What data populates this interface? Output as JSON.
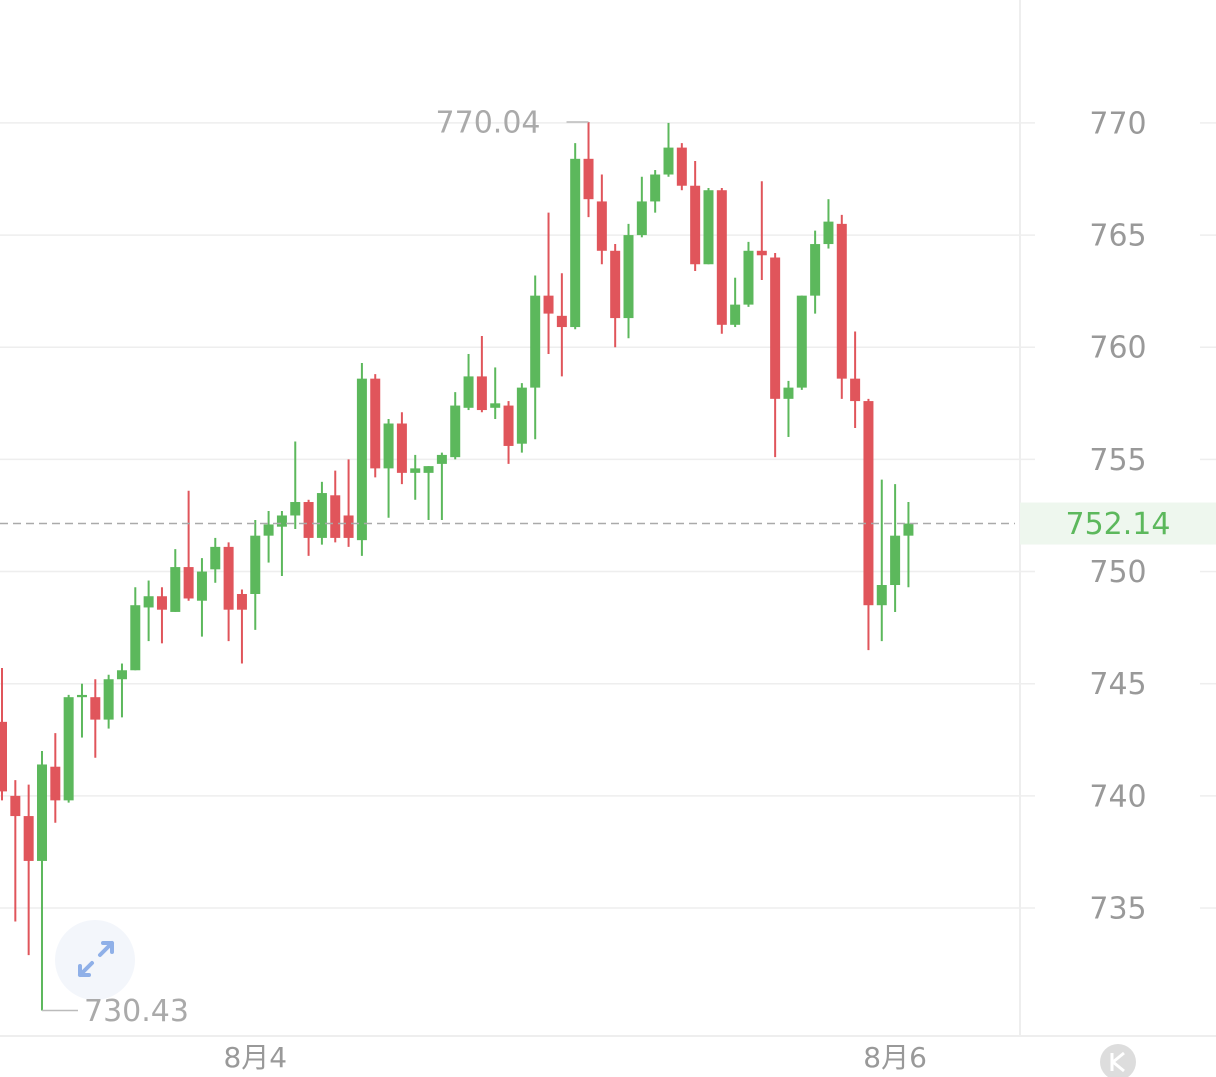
{
  "chart_data": {
    "type": "candlestick",
    "categories": [
      null,
      null,
      null,
      null,
      null,
      null,
      null,
      null,
      null,
      null,
      null,
      null,
      null,
      null,
      null,
      null,
      null,
      null,
      null,
      "8月4",
      null,
      null,
      null,
      null,
      null,
      null,
      null,
      null,
      null,
      null,
      null,
      null,
      null,
      null,
      null,
      null,
      null,
      null,
      null,
      null,
      null,
      null,
      null,
      null,
      null,
      null,
      null,
      null,
      null,
      null,
      null,
      null,
      null,
      null,
      null,
      null,
      null,
      null,
      null,
      null,
      null,
      null,
      null,
      null,
      null,
      null,
      null,
      "8月6",
      null
    ],
    "open": [
      743.3,
      740.0,
      739.1,
      737.1,
      741.3,
      739.8,
      744.4,
      744.4,
      743.4,
      745.2,
      745.6,
      748.4,
      748.9,
      748.2,
      750.2,
      748.7,
      750.1,
      751.1,
      749.0,
      749.0,
      751.6,
      752.0,
      752.5,
      753.1,
      751.5,
      753.4,
      752.5,
      751.4,
      758.6,
      754.6,
      756.6,
      754.4,
      754.4,
      754.8,
      755.1,
      757.3,
      758.7,
      757.3,
      757.4,
      755.7,
      758.2,
      762.3,
      761.4,
      760.9,
      768.4,
      766.5,
      764.3,
      761.3,
      765.0,
      766.5,
      767.7,
      768.9,
      767.2,
      763.7,
      767.0,
      761.0,
      761.9,
      764.3,
      764.0,
      757.7,
      758.2,
      762.3,
      764.6,
      765.5,
      758.6,
      757.6,
      748.5,
      749.4,
      751.6
    ],
    "high": [
      745.7,
      740.7,
      740.5,
      742.0,
      742.8,
      744.5,
      745.0,
      745.2,
      745.4,
      745.9,
      749.3,
      749.6,
      749.3,
      751.0,
      753.6,
      750.6,
      751.5,
      751.3,
      749.2,
      752.3,
      752.7,
      752.7,
      755.8,
      753.2,
      754.0,
      754.5,
      755.0,
      759.3,
      758.8,
      756.8,
      757.1,
      755.2,
      754.7,
      755.3,
      758.0,
      759.7,
      760.5,
      759.1,
      757.6,
      758.4,
      763.2,
      766.0,
      763.3,
      769.1,
      770.04,
      767.7,
      764.6,
      765.5,
      767.6,
      767.9,
      770.0,
      769.1,
      768.3,
      767.1,
      767.1,
      763.1,
      764.7,
      767.4,
      764.2,
      758.5,
      762.3,
      765.2,
      766.6,
      765.9,
      760.7,
      757.7,
      754.1,
      753.9,
      753.1
    ],
    "low": [
      739.8,
      734.4,
      732.9,
      730.43,
      738.8,
      739.7,
      742.6,
      741.7,
      743.0,
      743.5,
      745.6,
      746.9,
      746.8,
      748.2,
      748.7,
      747.1,
      749.5,
      746.9,
      745.9,
      747.4,
      750.4,
      749.8,
      751.9,
      750.7,
      751.2,
      751.3,
      751.1,
      750.7,
      754.2,
      752.4,
      753.9,
      753.2,
      752.3,
      752.3,
      755.0,
      757.2,
      757.1,
      756.8,
      754.8,
      755.3,
      755.9,
      759.7,
      758.7,
      760.8,
      765.8,
      763.7,
      760.0,
      760.4,
      764.9,
      766.0,
      767.6,
      767.0,
      763.4,
      763.7,
      760.6,
      760.9,
      761.8,
      763.0,
      755.1,
      756.0,
      758.1,
      761.5,
      764.4,
      757.7,
      756.4,
      746.5,
      746.9,
      748.2,
      749.3
    ],
    "close": [
      740.2,
      739.1,
      737.1,
      741.4,
      739.8,
      744.4,
      744.5,
      743.4,
      745.2,
      745.6,
      748.5,
      748.9,
      748.3,
      750.2,
      748.8,
      750.0,
      751.1,
      748.3,
      748.3,
      751.6,
      752.1,
      752.5,
      753.1,
      751.5,
      753.5,
      751.5,
      751.5,
      758.6,
      754.6,
      756.6,
      754.4,
      754.6,
      754.7,
      755.2,
      757.4,
      758.7,
      757.2,
      757.5,
      755.6,
      758.2,
      762.3,
      761.5,
      760.9,
      768.4,
      766.6,
      764.3,
      761.3,
      765.0,
      766.5,
      767.7,
      768.9,
      767.2,
      763.7,
      767.0,
      761.0,
      761.9,
      764.3,
      764.1,
      757.7,
      758.2,
      762.3,
      764.6,
      765.6,
      758.6,
      757.6,
      748.5,
      749.4,
      751.6,
      752.14
    ],
    "up_color": "#5cb85c",
    "down_color": "#e0555b",
    "max_label": 770.04,
    "min_label": 730.43,
    "last_price": 752.14,
    "ylim": [
      729.34,
      775.48
    ],
    "yticks": [
      735,
      740,
      745,
      750,
      755,
      760,
      765,
      770
    ],
    "grid": true
  }
}
